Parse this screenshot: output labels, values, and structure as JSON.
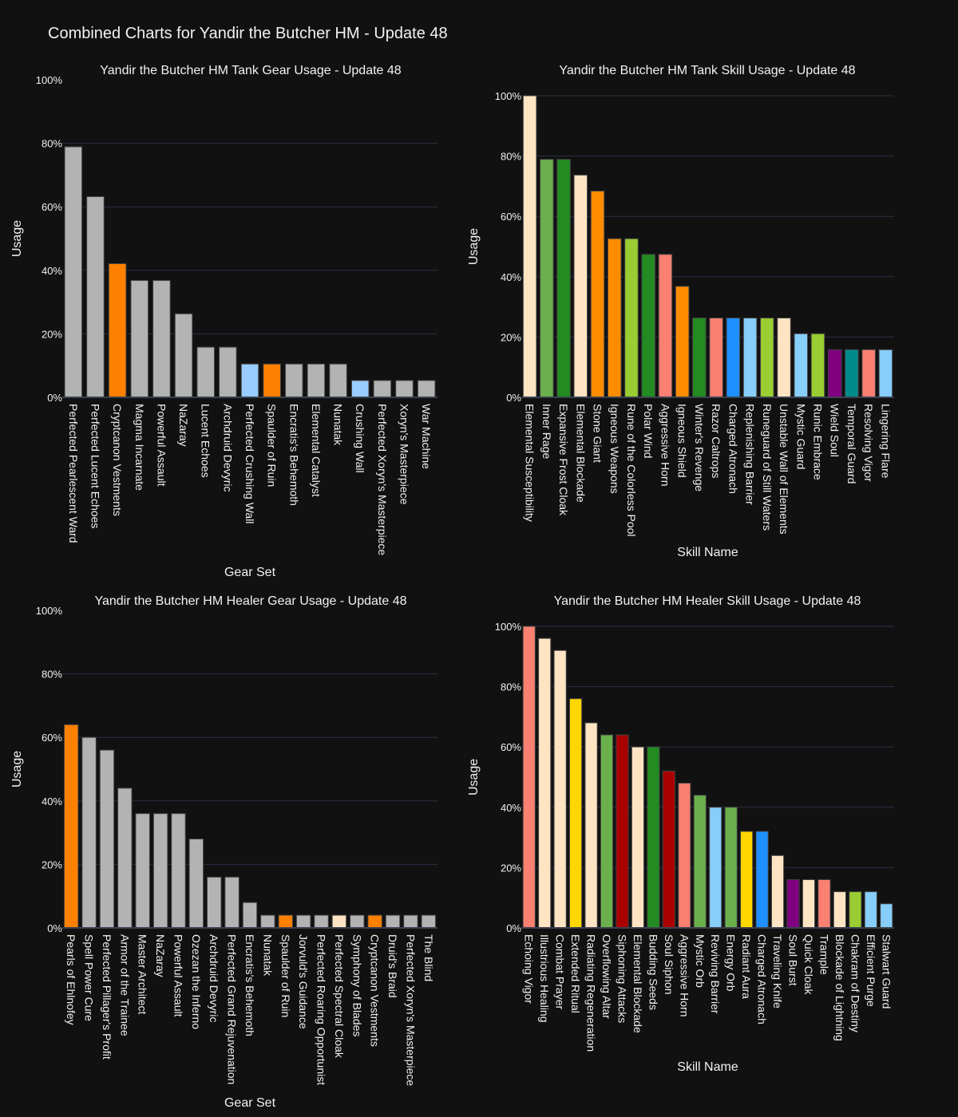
{
  "page": {
    "title": "Combined Charts for Yandir the Butcher HM - Update 48"
  },
  "colors": {
    "background": "#111111",
    "text": "#f2f2f2",
    "grid": "#283142",
    "gray": "#b3b3b3",
    "orange": "#ff8000",
    "darkorange": "#ff8c00",
    "lightskyblue": "#87cefa",
    "lightblue": "#99ccff",
    "bisque": "#ffe4c4",
    "green": "#6ab04c",
    "forestgreen": "#228b22",
    "yellowgreen": "#9acd32",
    "salmon": "#fa8072",
    "dodgerblue": "#1e90ff",
    "purple": "#800080",
    "teal": "#008b8b",
    "gold": "#ffd700",
    "darkred": "#aa0000"
  },
  "chart_data": [
    {
      "id": "tank-gear",
      "type": "bar",
      "title": "Yandir the Butcher HM Tank Gear Usage - Update 48",
      "xlabel": "Gear Set",
      "ylabel": "Usage",
      "ylim": [
        0,
        100
      ],
      "yticks": [
        0,
        20,
        40,
        60,
        80,
        100
      ],
      "ytick_labels": [
        "0%",
        "20%",
        "40%",
        "60%",
        "80%",
        "100%"
      ],
      "grid": true,
      "categories": [
        "Perfected Pearlescent Ward",
        "Perfected Lucent Echoes",
        "Cryptcanon Vestments",
        "Magma Incarnate",
        "Powerful Assault",
        "NaZaray",
        "Lucent Echoes",
        "Archdruid Devyric",
        "Perfected Crushing Wall",
        "Spaulder of Ruin",
        "Encratis's Behemoth",
        "Elemental Catalyst",
        "Nunatak",
        "Crushing Wall",
        "Perfected Xoryn's Masterpiece",
        "Xoryn's Masterpiece",
        "War Machine"
      ],
      "values": [
        78.9,
        63.2,
        42.1,
        36.8,
        36.8,
        26.3,
        15.8,
        15.8,
        10.5,
        10.5,
        10.5,
        10.5,
        10.5,
        5.3,
        5.3,
        5.3,
        5.3
      ],
      "colors": [
        "#b3b3b3",
        "#b3b3b3",
        "#ff8000",
        "#b3b3b3",
        "#b3b3b3",
        "#b3b3b3",
        "#b3b3b3",
        "#b3b3b3",
        "#99ccff",
        "#ff8000",
        "#b3b3b3",
        "#b3b3b3",
        "#b3b3b3",
        "#99ccff",
        "#b3b3b3",
        "#b3b3b3",
        "#b3b3b3"
      ]
    },
    {
      "id": "tank-skill",
      "type": "bar",
      "title": "Yandir the Butcher HM Tank Skill Usage - Update 48",
      "xlabel": "Skill Name",
      "ylabel": "Usage",
      "ylim": [
        0,
        100
      ],
      "yticks": [
        0,
        20,
        40,
        60,
        80,
        100
      ],
      "ytick_labels": [
        "0%",
        "20%",
        "40%",
        "60%",
        "80%",
        "100%"
      ],
      "grid": true,
      "categories": [
        "Elemental Susceptibility",
        "Inner Rage",
        "Expansive Frost Cloak",
        "Elemental Blockade",
        "Stone Giant",
        "Igneous Weapons",
        "Rune of the Colorless Pool",
        "Polar Wind",
        "Aggressive Horn",
        "Igneous Shield",
        "Winter's Revenge",
        "Razor Caltrops",
        "Charged Atronach",
        "Replenishing Barrier",
        "Runeguard of Still Waters",
        "Unstable Wall of Elements",
        "Mystic Guard",
        "Runic Embrace",
        "Wield Soul",
        "Temporal Guard",
        "Resolving Vigor",
        "Lingering Flare"
      ],
      "values": [
        100,
        78.9,
        78.9,
        73.7,
        68.4,
        52.6,
        52.6,
        47.4,
        47.4,
        36.8,
        26.3,
        26.3,
        26.3,
        26.3,
        26.3,
        26.3,
        21.1,
        21.1,
        15.8,
        15.8,
        15.8,
        15.8
      ],
      "colors": [
        "#ffe4c4",
        "#6ab04c",
        "#228b22",
        "#ffe4c4",
        "#ff8c00",
        "#ff8c00",
        "#9acd32",
        "#228b22",
        "#fa8072",
        "#ff8c00",
        "#228b22",
        "#fa8072",
        "#1e90ff",
        "#87cefa",
        "#9acd32",
        "#ffe4c4",
        "#87cefa",
        "#9acd32",
        "#800080",
        "#008b8b",
        "#fa8072",
        "#87cefa"
      ]
    },
    {
      "id": "healer-gear",
      "type": "bar",
      "title": "Yandir the Butcher HM Healer Gear Usage - Update 48",
      "xlabel": "Gear Set",
      "ylabel": "Usage",
      "ylim": [
        0,
        100
      ],
      "yticks": [
        0,
        20,
        40,
        60,
        80,
        100
      ],
      "ytick_labels": [
        "0%",
        "20%",
        "40%",
        "60%",
        "80%",
        "100%"
      ],
      "grid": true,
      "categories": [
        "Pearls of Ehlnofey",
        "Spell Power Cure",
        "Perfected Pillager's Profit",
        "Armor of the Trainee",
        "Master Architect",
        "NaZaray",
        "Powerful Assault",
        "Ozezan the Inferno",
        "Archdruid Devyric",
        "Perfected Grand Rejuvenation",
        "Encratis's Behemoth",
        "Nunatak",
        "Spaulder of Ruin",
        "Jorvuld's Guidance",
        "Perfected Roaring Opportunist",
        "Perfected Spectral Cloak",
        "Symphony of Blades",
        "Cryptcanon Vestments",
        "Druid's Braid",
        "Perfected Xoryn's Masterpiece",
        "The Blind"
      ],
      "values": [
        64,
        60,
        56,
        44,
        36,
        36,
        36,
        28,
        16,
        16,
        8,
        4,
        4,
        4,
        4,
        4,
        4,
        4,
        4,
        4,
        4
      ],
      "colors": [
        "#ff8000",
        "#b3b3b3",
        "#b3b3b3",
        "#b3b3b3",
        "#b3b3b3",
        "#b3b3b3",
        "#b3b3b3",
        "#b3b3b3",
        "#b3b3b3",
        "#b3b3b3",
        "#b3b3b3",
        "#b3b3b3",
        "#ff8000",
        "#b3b3b3",
        "#b3b3b3",
        "#ffe4c4",
        "#b3b3b3",
        "#ff8000",
        "#b3b3b3",
        "#b3b3b3",
        "#b3b3b3"
      ]
    },
    {
      "id": "healer-skill",
      "type": "bar",
      "title": "Yandir the Butcher HM Healer Skill Usage - Update 48",
      "xlabel": "Skill Name",
      "ylabel": "Usage",
      "ylim": [
        0,
        100
      ],
      "yticks": [
        0,
        20,
        40,
        60,
        80,
        100
      ],
      "ytick_labels": [
        "0%",
        "20%",
        "40%",
        "60%",
        "80%",
        "100%"
      ],
      "grid": true,
      "categories": [
        "Echoing Vigor",
        "Illustrious Healing",
        "Combat Prayer",
        "Extended Ritual",
        "Radiating Regeneration",
        "Overflowing Altar",
        "Siphoning Attacks",
        "Elemental Blockade",
        "Budding Seeds",
        "Soul Siphon",
        "Aggressive Horn",
        "Mystic Orb",
        "Reviving Barrier",
        "Energy Orb",
        "Radiant Aura",
        "Charged Atronach",
        "Traveling Knife",
        "Soul Burst",
        "Quick Cloak",
        "Trample",
        "Blockade of Lightning",
        "Chakram of Destiny",
        "Efficient Purge",
        "Stalwart Guard"
      ],
      "values": [
        100,
        96,
        92,
        76,
        68,
        64,
        64,
        60,
        60,
        52,
        48,
        44,
        40,
        40,
        32,
        32,
        24,
        16,
        16,
        16,
        12,
        12,
        12,
        8
      ],
      "colors": [
        "#fa8072",
        "#ffe4c4",
        "#ffe4c4",
        "#ffd700",
        "#ffe4c4",
        "#6ab04c",
        "#aa0000",
        "#ffe4c4",
        "#228b22",
        "#aa0000",
        "#fa8072",
        "#6ab04c",
        "#87cefa",
        "#6ab04c",
        "#ffd700",
        "#1e90ff",
        "#ffe4c4",
        "#800080",
        "#ffe4c4",
        "#fa8072",
        "#ffe4c4",
        "#9acd32",
        "#87cefa",
        "#87cefa"
      ]
    }
  ]
}
